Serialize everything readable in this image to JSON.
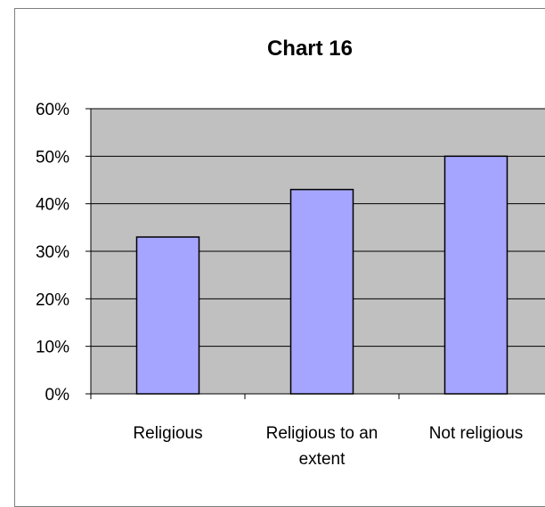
{
  "chart_data": {
    "type": "bar",
    "title": "Chart 16",
    "categories": [
      [
        "Religious"
      ],
      [
        "Religious to an",
        "extent"
      ],
      [
        "Not religious"
      ]
    ],
    "category_labels": [
      "Religious",
      "Religious to an extent",
      "Not religious"
    ],
    "values": [
      0.33,
      0.43,
      0.5
    ],
    "ylim": [
      0,
      0.6
    ],
    "yticks": [
      "0%",
      "10%",
      "20%",
      "30%",
      "40%",
      "50%",
      "60%"
    ],
    "xlabel": "",
    "ylabel": "",
    "grid": true,
    "legend": "none",
    "colors": {
      "bar_fill": "#a5a5ff",
      "bar_stroke": "#000000",
      "plot_background": "#c0c0c0",
      "gridline": "#000000"
    }
  }
}
